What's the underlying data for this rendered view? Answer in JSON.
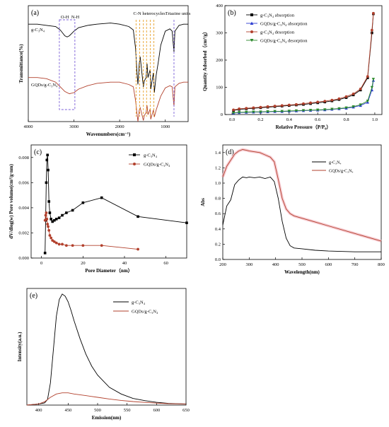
{
  "colors": {
    "black": "#000000",
    "red": "#b2402c",
    "blue": "#2b3bd1",
    "green": "#2c8a2c",
    "box": "#7b5fd8",
    "band": "#e8a12a",
    "pink_halo": "#f3b8c2"
  },
  "chart_data": [
    {
      "id": "a",
      "type": "line",
      "panel_label": "(a)",
      "xlabel": "Wavenumbers(cm⁻¹)",
      "ylabel": "Transmittance(%)",
      "xlim": [
        4000,
        500
      ],
      "x_reversed": true,
      "xticks": [
        4000,
        3000,
        2000,
        1000
      ],
      "annotations": [
        "O-H",
        "N-H",
        "C-N heterocycles",
        "Triazine units"
      ],
      "series": [
        {
          "name": "g-C₃N₄",
          "color": "#000000",
          "x": [
            4000,
            3800,
            3600,
            3400,
            3300,
            3200,
            3150,
            3100,
            3050,
            3000,
            2900,
            2700,
            2500,
            2200,
            2000,
            1800,
            1700,
            1650,
            1620,
            1600,
            1570,
            1550,
            1480,
            1460,
            1420,
            1400,
            1380,
            1330,
            1320,
            1260,
            1240,
            1200,
            1150,
            1100,
            1000,
            900,
            850,
            810,
            790,
            700,
            600,
            500
          ],
          "y": [
            0.84,
            0.84,
            0.83,
            0.82,
            0.79,
            0.74,
            0.73,
            0.74,
            0.76,
            0.78,
            0.81,
            0.83,
            0.84,
            0.85,
            0.84,
            0.82,
            0.79,
            0.63,
            0.42,
            0.32,
            0.5,
            0.56,
            0.3,
            0.35,
            0.38,
            0.5,
            0.38,
            0.45,
            0.28,
            0.42,
            0.25,
            0.4,
            0.52,
            0.66,
            0.78,
            0.8,
            0.78,
            0.6,
            0.78,
            0.83,
            0.84,
            0.84
          ]
        },
        {
          "name": "GQDs/g-C₃N₄",
          "color": "#b2402c",
          "x": [
            4000,
            3800,
            3600,
            3400,
            3300,
            3200,
            3100,
            3000,
            2900,
            2700,
            2500,
            2200,
            2000,
            1800,
            1700,
            1650,
            1620,
            1600,
            1570,
            1550,
            1480,
            1460,
            1420,
            1400,
            1380,
            1330,
            1320,
            1260,
            1240,
            1200,
            1150,
            1100,
            1000,
            900,
            850,
            810,
            790,
            700,
            600,
            500
          ],
          "y": [
            0.38,
            0.38,
            0.37,
            0.34,
            0.3,
            0.26,
            0.24,
            0.25,
            0.28,
            0.31,
            0.33,
            0.34,
            0.34,
            0.32,
            0.3,
            0.18,
            0.07,
            0.0,
            0.1,
            0.12,
            0.01,
            0.05,
            0.08,
            0.14,
            0.06,
            0.11,
            0.02,
            0.1,
            0.04,
            0.1,
            0.16,
            0.22,
            0.29,
            0.31,
            0.3,
            0.13,
            0.3,
            0.33,
            0.34,
            0.34
          ]
        }
      ]
    },
    {
      "id": "b",
      "type": "line",
      "panel_label": "(b)",
      "xlabel": "Relative Pressure（P/P₀）",
      "ylabel": "Quantity Adsorbed（cm³/g）",
      "xlim": [
        -0.05,
        1.05
      ],
      "ylim": [
        0,
        400
      ],
      "xticks": [
        0.0,
        0.2,
        0.4,
        0.6,
        0.8,
        1.0
      ],
      "yticks": [
        0,
        100,
        200,
        300,
        400
      ],
      "x": [
        0.01,
        0.05,
        0.1,
        0.15,
        0.2,
        0.25,
        0.3,
        0.35,
        0.4,
        0.45,
        0.5,
        0.55,
        0.6,
        0.65,
        0.7,
        0.75,
        0.8,
        0.85,
        0.9,
        0.95,
        0.98,
        0.99
      ],
      "series": [
        {
          "name": "g-C₃N₄ absorption",
          "color": "#000000",
          "marker": "square",
          "y": [
            15,
            19,
            21,
            23,
            25,
            27,
            29,
            31,
            33,
            35,
            37,
            40,
            43,
            46,
            50,
            55,
            62,
            72,
            90,
            135,
            300,
            370
          ]
        },
        {
          "name": "GQDs/g-C₃N₄ absorption",
          "color": "#2b3bd1",
          "marker": "triangle",
          "y": [
            5,
            7,
            8,
            9,
            9,
            10,
            11,
            11,
            12,
            13,
            14,
            15,
            16,
            17,
            19,
            21,
            23,
            27,
            33,
            45,
            90,
            125
          ]
        },
        {
          "name": "g-C₃N₄ desorption",
          "color": "#b2402c",
          "marker": "circle",
          "y": [
            17,
            21,
            23,
            25,
            27,
            29,
            31,
            33,
            35,
            37,
            40,
            43,
            46,
            49,
            53,
            58,
            66,
            76,
            94,
            140,
            310,
            372
          ]
        },
        {
          "name": "GQDs/g-C₃N₄ desorption",
          "color": "#2c8a2c",
          "marker": "triangle-down",
          "y": [
            6,
            8,
            9,
            10,
            10,
            11,
            12,
            12,
            13,
            14,
            15,
            16,
            17,
            18,
            20,
            22,
            25,
            29,
            36,
            50,
            100,
            130
          ]
        }
      ]
    },
    {
      "id": "c",
      "type": "line",
      "panel_label": "(c)",
      "xlabel": "Pore Diameter（nm）",
      "ylabel": "dV/dlog(w) Pore volume(cm³/g·nm)",
      "xlim": [
        -5,
        70
      ],
      "ylim": [
        0,
        0.009
      ],
      "xticks": [
        0,
        20,
        40,
        60
      ],
      "yticks": [
        0.0,
        0.002,
        0.004,
        0.006,
        0.008
      ],
      "series": [
        {
          "name": "g-C₃N₄",
          "color": "#000000",
          "marker": "square",
          "x": [
            1.7,
            2.0,
            2.3,
            2.6,
            2.9,
            3.2,
            3.6,
            4.0,
            4.6,
            5.3,
            6.2,
            7.2,
            8.5,
            10,
            12,
            15,
            20,
            29,
            46.5,
            70
          ],
          "y": [
            0.0004,
            0.003,
            0.006,
            0.0078,
            0.0082,
            0.007,
            0.0045,
            0.0036,
            0.0031,
            0.0029,
            0.003,
            0.0031,
            0.0032,
            0.0034,
            0.0036,
            0.0038,
            0.0044,
            0.0048,
            0.0033,
            0.0028
          ]
        },
        {
          "name": "GQDs/g-C₃N₄",
          "color": "#b2402c",
          "marker": "circle",
          "x": [
            1.7,
            2.0,
            2.3,
            2.6,
            2.9,
            3.2,
            3.6,
            4.0,
            4.6,
            5.3,
            6.2,
            7.2,
            8.5,
            10,
            12,
            15,
            20,
            29,
            46.5
          ],
          "y": [
            0.003,
            0.0034,
            0.0036,
            0.0031,
            0.0027,
            0.0025,
            0.0022,
            0.0018,
            0.0016,
            0.0014,
            0.0013,
            0.0012,
            0.0011,
            0.0011,
            0.001,
            0.001,
            0.001,
            0.001,
            0.0007
          ]
        }
      ]
    },
    {
      "id": "d",
      "type": "line",
      "panel_label": "(d)",
      "xlabel": "Wavelength(nm)",
      "ylabel": "Abs",
      "xlim": [
        200,
        800
      ],
      "ylim": [
        0,
        1.5
      ],
      "xticks": [
        200,
        300,
        400,
        500,
        600,
        700,
        800
      ],
      "yticks": [
        0.0,
        0.2,
        0.4,
        0.6,
        0.8,
        1.0,
        1.2,
        1.4
      ],
      "series": [
        {
          "name": "g-C₃N₄",
          "color": "#000000",
          "x": [
            200,
            215,
            230,
            245,
            260,
            275,
            290,
            300,
            320,
            340,
            360,
            380,
            395,
            410,
            425,
            440,
            455,
            470,
            500,
            550,
            600,
            700,
            800
          ],
          "y": [
            0.45,
            0.7,
            0.78,
            0.98,
            1.04,
            1.08,
            1.07,
            1.08,
            1.07,
            1.08,
            1.06,
            1.08,
            1.02,
            0.8,
            0.5,
            0.28,
            0.18,
            0.15,
            0.14,
            0.12,
            0.11,
            0.1,
            0.1
          ]
        },
        {
          "name": "GQDs/g-C₃N₄",
          "color": "#b2402c",
          "x": [
            200,
            215,
            230,
            245,
            260,
            275,
            290,
            300,
            320,
            340,
            360,
            380,
            395,
            410,
            425,
            440,
            455,
            470,
            500,
            550,
            600,
            700,
            800
          ],
          "y": [
            1.08,
            1.22,
            1.3,
            1.38,
            1.42,
            1.44,
            1.43,
            1.42,
            1.41,
            1.4,
            1.37,
            1.34,
            1.28,
            1.05,
            0.8,
            0.66,
            0.6,
            0.57,
            0.54,
            0.49,
            0.44,
            0.34,
            0.24
          ]
        }
      ]
    },
    {
      "id": "e",
      "type": "line",
      "panel_label": "(e)",
      "xlabel": "Emission(nm)",
      "ylabel": "Intensity(a.u.)",
      "xlim": [
        380,
        650
      ],
      "ylim": [
        0,
        1.05
      ],
      "xticks": [
        400,
        450,
        500,
        550,
        600,
        650
      ],
      "series": [
        {
          "name": "g-C₃N₄",
          "color": "#000000",
          "x": [
            380,
            400,
            410,
            415,
            420,
            425,
            430,
            435,
            440,
            445,
            450,
            455,
            460,
            470,
            480,
            490,
            500,
            520,
            540,
            560,
            580,
            600,
            620,
            650
          ],
          "y": [
            0.0,
            0.01,
            0.02,
            0.05,
            0.2,
            0.5,
            0.8,
            0.95,
            1.0,
            0.98,
            0.93,
            0.85,
            0.76,
            0.6,
            0.46,
            0.35,
            0.27,
            0.16,
            0.1,
            0.06,
            0.04,
            0.025,
            0.015,
            0.01
          ]
        },
        {
          "name": "GQDs/g-C₃N₄",
          "color": "#b2402c",
          "x": [
            380,
            400,
            410,
            420,
            430,
            440,
            450,
            460,
            480,
            500,
            520,
            540,
            560,
            580,
            600,
            620,
            650
          ],
          "y": [
            0.0,
            0.01,
            0.03,
            0.07,
            0.1,
            0.11,
            0.11,
            0.1,
            0.085,
            0.07,
            0.055,
            0.042,
            0.032,
            0.024,
            0.018,
            0.013,
            0.01
          ]
        }
      ]
    }
  ]
}
